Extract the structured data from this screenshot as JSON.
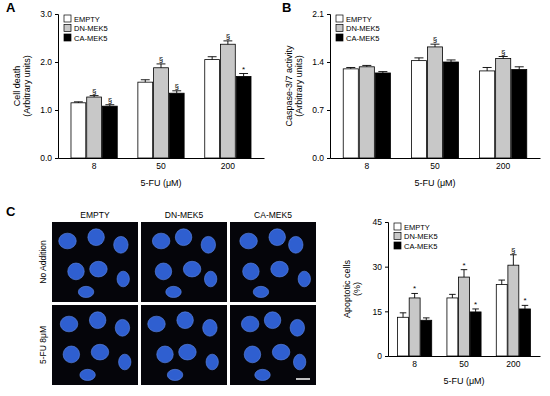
{
  "panel_labels": [
    "A",
    "B",
    "C"
  ],
  "micrographs": {
    "columns": [
      "EMPTY",
      "DN-MEK5",
      "CA-MEK5"
    ],
    "rows": [
      "No Addition",
      "5-FU 8μM"
    ]
  },
  "chart_data": [
    {
      "type": "bar",
      "y_label": [
        "Cell death",
        "(Arbitrary units)"
      ],
      "x_label": "5-FU (μM)",
      "categories": [
        "8",
        "50",
        "200"
      ],
      "series": [
        {
          "name": "EMPTY",
          "color": "#ffffff",
          "values": [
            1.15,
            1.58,
            2.05
          ],
          "errors": [
            0.02,
            0.05,
            0.06
          ],
          "significance": [
            null,
            null,
            null
          ]
        },
        {
          "name": "DN-MEK5",
          "color": "#c8c8c8",
          "values": [
            1.27,
            1.88,
            2.37
          ],
          "errors": [
            0.03,
            0.08,
            0.07
          ],
          "significance": [
            "§",
            "§",
            "§"
          ]
        },
        {
          "name": "CA-MEK5",
          "color": "#000000",
          "values": [
            1.08,
            1.35,
            1.7
          ],
          "errors": [
            0.03,
            0.05,
            0.06
          ],
          "significance": [
            "§",
            "§",
            "*"
          ]
        }
      ],
      "ylim": [
        0,
        3
      ],
      "yticks": [
        {
          "value": 0,
          "label": "0.0"
        },
        {
          "value": 1,
          "label": "1.0"
        },
        {
          "value": 2,
          "label": "2.0"
        },
        {
          "value": 3,
          "label": "3.0"
        }
      ],
      "grid": false,
      "legend": "top-left"
    },
    {
      "type": "bar",
      "y_label": [
        "Caspase-3/7 activity",
        "(Arbitrary units)"
      ],
      "x_label": "5-FU (μM)",
      "categories": [
        "8",
        "50",
        "200"
      ],
      "series": [
        {
          "name": "EMPTY",
          "color": "#ffffff",
          "values": [
            1.3,
            1.42,
            1.27
          ],
          "errors": [
            0.02,
            0.04,
            0.05
          ],
          "significance": [
            null,
            null,
            null
          ]
        },
        {
          "name": "DN-MEK5",
          "color": "#c8c8c8",
          "values": [
            1.33,
            1.62,
            1.45
          ],
          "errors": [
            0.02,
            0.04,
            0.03
          ],
          "significance": [
            null,
            "§",
            "§"
          ]
        },
        {
          "name": "CA-MEK5",
          "color": "#000000",
          "values": [
            1.24,
            1.4,
            1.29
          ],
          "errors": [
            0.02,
            0.03,
            0.04
          ],
          "significance": [
            null,
            null,
            null
          ]
        }
      ],
      "ylim": [
        0,
        2.1
      ],
      "yticks": [
        {
          "value": 0,
          "label": "0.0"
        },
        0.7,
        1.4,
        2.1
      ],
      "grid": false,
      "legend": "top-left"
    },
    {
      "type": "bar",
      "y_label": [
        "Apoptotic cells",
        "(%)"
      ],
      "x_label": "5-FU (μM)",
      "categories": [
        "8",
        "50",
        "200"
      ],
      "series": [
        {
          "name": "EMPTY",
          "color": "#ffffff",
          "values": [
            13,
            19.5,
            24
          ],
          "errors": [
            1.5,
            1.2,
            1.5
          ],
          "significance": [
            null,
            null,
            null
          ]
        },
        {
          "name": "DN-MEK5",
          "color": "#c8c8c8",
          "values": [
            19.5,
            26.5,
            30.5
          ],
          "errors": [
            1.5,
            2.5,
            3.5
          ],
          "significance": [
            "*",
            "*",
            "§"
          ]
        },
        {
          "name": "CA-MEK5",
          "color": "#000000",
          "values": [
            12,
            14.8,
            15.8
          ],
          "errors": [
            0.8,
            1.0,
            1.2
          ],
          "significance": [
            null,
            "*",
            "*"
          ]
        }
      ],
      "ylim": [
        0,
        45
      ],
      "yticks": [
        0,
        15,
        30,
        45
      ],
      "grid": false,
      "legend": "top-left"
    }
  ]
}
